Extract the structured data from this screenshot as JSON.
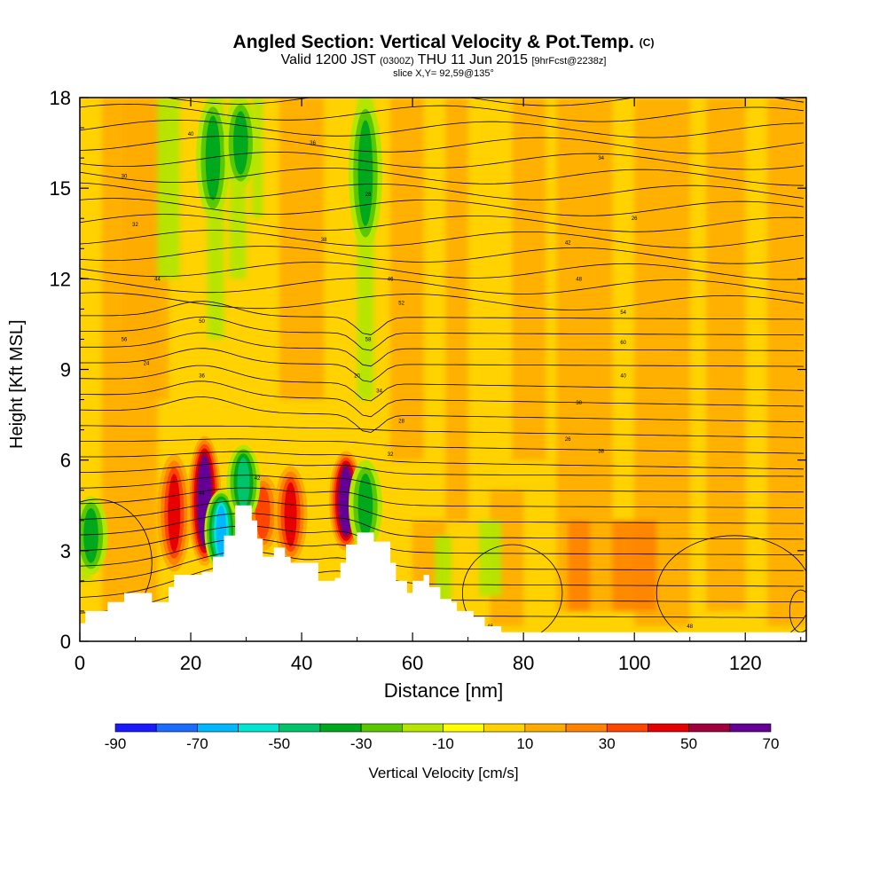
{
  "title": {
    "main": "Angled Section: Vertical Velocity & Pot.Temp.",
    "main_units": "(C)",
    "valid_prefix": "Valid 1200 JST",
    "valid_utc": "(0300Z)",
    "valid_date": "THU 11 Jun 2015",
    "forecast": "[9hrFcst@2238z]",
    "slice": "slice X,Y= 92,59@135°"
  },
  "chart_data": {
    "type": "heatmap",
    "title": "Angled Section: Vertical Velocity & Pot.Temp. (C)",
    "xlabel": "Distance [nm]",
    "ylabel": "Height [Kft MSL]",
    "xlim": [
      0,
      131
    ],
    "ylim": [
      0,
      18
    ],
    "x_ticks": [
      0,
      20,
      40,
      60,
      80,
      100,
      120
    ],
    "y_ticks": [
      0,
      3,
      6,
      9,
      12,
      15,
      18
    ],
    "colorbar": {
      "label": "Vertical Velocity [cm/s]",
      "tick_labels": [
        "-90",
        "-70",
        "-50",
        "-30",
        "-10",
        "10",
        "30",
        "50",
        "70"
      ],
      "levels": [
        -90,
        -80,
        -70,
        -60,
        -50,
        -40,
        -30,
        -20,
        -10,
        0,
        10,
        20,
        30,
        40,
        50,
        60,
        70
      ],
      "colors": [
        "#1a1aff",
        "#1a6cff",
        "#00b8ff",
        "#00e6d2",
        "#00c46a",
        "#00a81e",
        "#5ac800",
        "#b4e600",
        "#ffff00",
        "#ffd200",
        "#ffac00",
        "#ff8200",
        "#ff4600",
        "#e60000",
        "#a0003c",
        "#640096"
      ]
    },
    "updraft_cores": [
      {
        "x": 17,
        "bottom": 2.3,
        "top": 6.2,
        "peak": 40
      },
      {
        "x": 22.5,
        "bottom": 2.5,
        "top": 6.8,
        "peak": 70
      },
      {
        "x": 33,
        "bottom": 3.0,
        "top": 5.5,
        "peak": 30
      },
      {
        "x": 38,
        "bottom": 2.6,
        "top": 5.8,
        "peak": 40
      },
      {
        "x": 48,
        "bottom": 3.0,
        "top": 6.3,
        "peak": 70
      }
    ],
    "downdraft_cores": [
      {
        "x": 2,
        "bottom": 2.2,
        "top": 4.8,
        "peak": -30
      },
      {
        "x": 25.5,
        "bottom": 2.3,
        "top": 5.0,
        "peak": -60
      },
      {
        "x": 29.5,
        "bottom": 4.0,
        "top": 6.5,
        "peak": -40
      },
      {
        "x": 24,
        "bottom": 14,
        "top": 18,
        "peak": -30
      },
      {
        "x": 29,
        "bottom": 15,
        "top": 18,
        "peak": -30
      },
      {
        "x": 51.5,
        "bottom": 3.0,
        "top": 6.0,
        "peak": -30
      },
      {
        "x": 51.5,
        "bottom": 13,
        "top": 18,
        "peak": -30
      }
    ],
    "terrain": [
      [
        0,
        0.6
      ],
      [
        1,
        1.0
      ],
      [
        5,
        1.3
      ],
      [
        8,
        1.6
      ],
      [
        13,
        1.3
      ],
      [
        16,
        1.8
      ],
      [
        17,
        2.2
      ],
      [
        22,
        2.3
      ],
      [
        24,
        2.8
      ],
      [
        26,
        3.5
      ],
      [
        28,
        4.5
      ],
      [
        30,
        4.5
      ],
      [
        31,
        4.0
      ],
      [
        32,
        3.4
      ],
      [
        33,
        2.8
      ],
      [
        35,
        3.1
      ],
      [
        37,
        2.8
      ],
      [
        38,
        2.6
      ],
      [
        40,
        2.6
      ],
      [
        43,
        2.0
      ],
      [
        46,
        2.1
      ],
      [
        47,
        2.6
      ],
      [
        48,
        3.2
      ],
      [
        50,
        3.6
      ],
      [
        53,
        3.3
      ],
      [
        56,
        2.6
      ],
      [
        57,
        2.0
      ],
      [
        59,
        1.6
      ],
      [
        60,
        2.0
      ],
      [
        62,
        2.2
      ],
      [
        63,
        1.8
      ],
      [
        65,
        1.4
      ],
      [
        67,
        1.3
      ],
      [
        68,
        1.0
      ],
      [
        71,
        0.8
      ],
      [
        73,
        0.5
      ],
      [
        76,
        0.3
      ],
      [
        131,
        0.3
      ]
    ],
    "theta_contour_labels": [
      "40",
      "36",
      "34",
      "30",
      "28",
      "26",
      "32",
      "38",
      "42",
      "44",
      "46",
      "48",
      "50",
      "52",
      "54",
      "56",
      "58",
      "60",
      "24",
      "20"
    ]
  },
  "colorbar_label": "Vertical Velocity [cm/s]"
}
